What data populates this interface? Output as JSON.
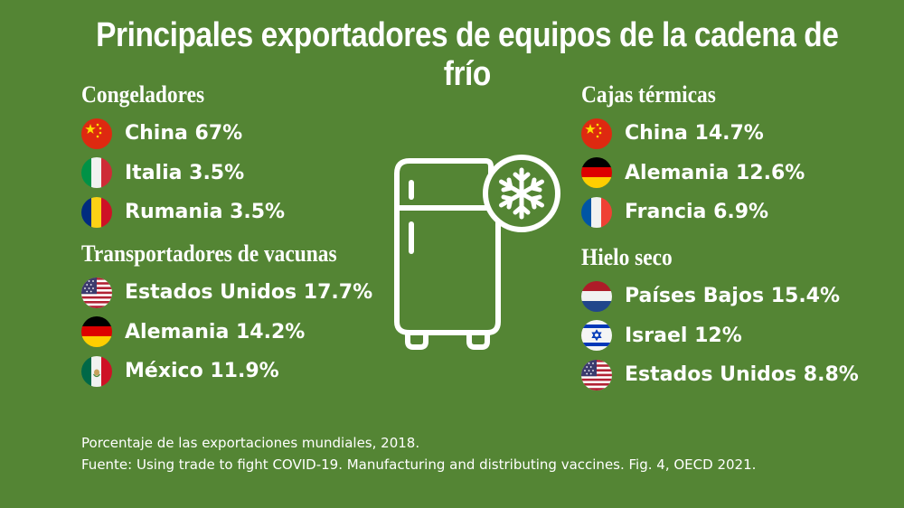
{
  "title": "Principales exportadores de equipos de la cadena de frío",
  "sections": {
    "congeladores": {
      "title": "Congeladores",
      "items": [
        {
          "label": "China 67%",
          "flag": "china-flag-icon"
        },
        {
          "label": "Italia 3.5%",
          "flag": "italy-flag-icon"
        },
        {
          "label": "Rumania 3.5%",
          "flag": "romania-flag-icon"
        }
      ]
    },
    "transportadores": {
      "title": "Transportadores de vacunas",
      "items": [
        {
          "label": "Estados Unidos 17.7%",
          "flag": "usa-flag-icon"
        },
        {
          "label": "Alemania 14.2%",
          "flag": "germany-flag-icon"
        },
        {
          "label": "México 11.9%",
          "flag": "mexico-flag-icon"
        }
      ]
    },
    "cajas": {
      "title": "Cajas térmicas",
      "items": [
        {
          "label": "China 14.7%",
          "flag": "china-flag-icon"
        },
        {
          "label": "Alemania 12.6%",
          "flag": "germany-flag-icon"
        },
        {
          "label": "Francia 6.9%",
          "flag": "france-flag-icon"
        }
      ]
    },
    "hielo": {
      "title": "Hielo seco",
      "items": [
        {
          "label": "Países Bajos 15.4%",
          "flag": "netherlands-flag-icon"
        },
        {
          "label": "Israel 12%",
          "flag": "israel-flag-icon"
        },
        {
          "label": "Estados Unidos 8.8%",
          "flag": "usa-flag-icon"
        }
      ]
    }
  },
  "illustration": "fridge-snowflake-icon",
  "footer": {
    "note": "Porcentaje de las exportaciones mundiales, 2018.",
    "source": "Fuente: Using trade to fight COVID-19. Manufacturing and distributing vaccines. Fig. 4, OECD 2021."
  },
  "colors": {
    "background": "#548534",
    "text": "#ffffff"
  }
}
